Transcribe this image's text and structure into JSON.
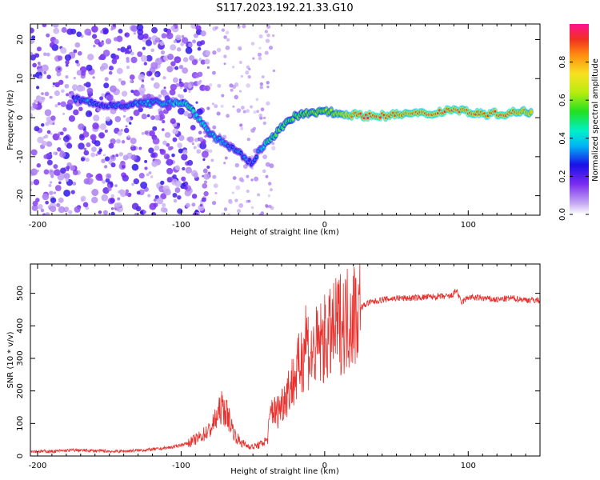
{
  "title": "S117.2023.192.21.33.G10",
  "colors": {
    "snr_line": "#e8302c",
    "axis": "#000000"
  },
  "chart_data": [
    {
      "type": "heatmap",
      "name": "spectrogram",
      "xlabel": "Height of straight line (km)",
      "ylabel": "Frequency (Hz)",
      "xlim": [
        -205,
        150
      ],
      "ylim": [
        -25,
        24
      ],
      "xticks": [
        -200,
        -100,
        0,
        100
      ],
      "xtick_labels": [
        "-200",
        "-100",
        "0",
        "100"
      ],
      "yticks": [
        -20,
        -10,
        0,
        10,
        20
      ],
      "ytick_labels": [
        "-20",
        "-10",
        "0",
        "10",
        "20"
      ],
      "colorbar": {
        "label": "Normalized spectral amplitude",
        "range": [
          0,
          1
        ],
        "ticks": [
          0.0,
          0.2,
          0.4,
          0.6,
          0.8
        ],
        "tick_labels": [
          "0.0",
          "0.2",
          "0.4",
          "0.6",
          "0.8"
        ]
      },
      "ridge": [
        {
          "x": -175,
          "y": 5,
          "a": 0.3
        },
        {
          "x": -165,
          "y": 4,
          "a": 0.35
        },
        {
          "x": -155,
          "y": 3,
          "a": 0.3
        },
        {
          "x": -110,
          "y": 4,
          "a": 0.4
        },
        {
          "x": -100,
          "y": 4,
          "a": 0.45
        },
        {
          "x": -95,
          "y": 3,
          "a": 0.5
        },
        {
          "x": -88,
          "y": 0,
          "a": 0.45
        },
        {
          "x": -80,
          "y": -4,
          "a": 0.4
        },
        {
          "x": -72,
          "y": -6,
          "a": 0.4
        },
        {
          "x": -64,
          "y": -8,
          "a": 0.35
        },
        {
          "x": -57,
          "y": -10,
          "a": 0.35
        },
        {
          "x": -50,
          "y": -12,
          "a": 0.3
        },
        {
          "x": -45,
          "y": -8,
          "a": 0.4
        },
        {
          "x": -40,
          "y": -6,
          "a": 0.5
        },
        {
          "x": -34,
          "y": -4,
          "a": 0.55
        },
        {
          "x": -28,
          "y": -2,
          "a": 0.6
        },
        {
          "x": -22,
          "y": 0,
          "a": 0.6
        },
        {
          "x": -15,
          "y": 1,
          "a": 0.6
        },
        {
          "x": -8,
          "y": 1,
          "a": 0.65
        },
        {
          "x": 0,
          "y": 2,
          "a": 0.7
        },
        {
          "x": 8,
          "y": 1,
          "a": 0.7
        },
        {
          "x": 15,
          "y": 1,
          "a": 0.8
        },
        {
          "x": 25,
          "y": 0.5,
          "a": 0.95
        },
        {
          "x": 35,
          "y": 0.5,
          "a": 0.95
        },
        {
          "x": 45,
          "y": 0.5,
          "a": 0.9
        },
        {
          "x": 55,
          "y": 1,
          "a": 0.85
        },
        {
          "x": 65,
          "y": 1,
          "a": 0.9
        },
        {
          "x": 75,
          "y": 1,
          "a": 0.9
        },
        {
          "x": 85,
          "y": 2,
          "a": 0.95
        },
        {
          "x": 95,
          "y": 2,
          "a": 0.9
        },
        {
          "x": 105,
          "y": 1,
          "a": 0.9
        },
        {
          "x": 115,
          "y": 1,
          "a": 0.9
        },
        {
          "x": 125,
          "y": 1,
          "a": 0.95
        },
        {
          "x": 135,
          "y": 1.5,
          "a": 0.85
        },
        {
          "x": 145,
          "y": 1.5,
          "a": 0.8
        }
      ]
    },
    {
      "type": "line",
      "name": "snr",
      "xlabel": "Height of straight line (km)",
      "ylabel": "SNR (10 * v/v)",
      "xlim": [
        -205,
        150
      ],
      "ylim": [
        0,
        590
      ],
      "xticks": [
        -200,
        -100,
        0,
        100
      ],
      "xtick_labels": [
        "-200",
        "-100",
        "0",
        "100"
      ],
      "yticks": [
        0,
        100,
        200,
        300,
        400,
        500
      ],
      "ytick_labels": [
        "0",
        "100",
        "200",
        "300",
        "400",
        "500"
      ],
      "series": [
        {
          "name": "SNR",
          "x": [
            -205,
            -190,
            -175,
            -160,
            -145,
            -130,
            -115,
            -105,
            -95,
            -88,
            -80,
            -75,
            -72,
            -68,
            -65,
            -62,
            -58,
            -54,
            -50,
            -45,
            -40,
            -37,
            -34,
            -30,
            -26,
            -22,
            -18,
            -15,
            -13,
            -10,
            -6,
            -2,
            2,
            6,
            10,
            15,
            20,
            25,
            30,
            40,
            50,
            60,
            70,
            80,
            88,
            92,
            95,
            100,
            110,
            120,
            130,
            140,
            150
          ],
          "y": [
            15,
            14,
            18,
            16,
            14,
            17,
            22,
            28,
            40,
            55,
            80,
            120,
            150,
            130,
            95,
            60,
            40,
            32,
            28,
            35,
            50,
            150,
            130,
            160,
            200,
            230,
            270,
            320,
            380,
            300,
            330,
            350,
            360,
            380,
            410,
            420,
            440,
            455,
            470,
            480,
            485,
            485,
            488,
            490,
            490,
            510,
            470,
            488,
            485,
            480,
            485,
            480,
            478
          ]
        }
      ]
    }
  ]
}
